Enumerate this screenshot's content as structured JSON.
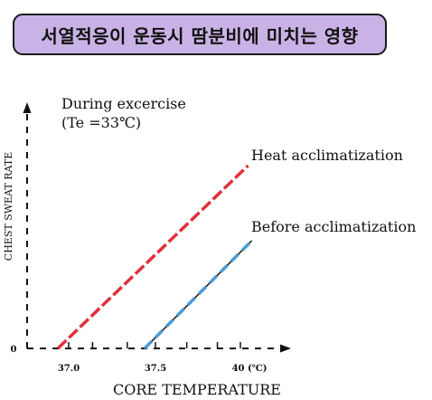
{
  "header": {
    "title": "서열적응이 운동시 땀분비에 미치는 영향"
  },
  "chart_data": {
    "type": "line",
    "condition": "During excercise",
    "condition_detail": "(Te =33℃)",
    "xlabel": "CORE TEMPERATURE",
    "ylabel": "CHEST SWEAT RATE",
    "y_origin_label": "0",
    "x_ticks": [
      {
        "value": 37.0,
        "label": "37.0"
      },
      {
        "value": 37.5,
        "label": "37.5"
      },
      {
        "value": 40.0,
        "label": "40 (℃)"
      }
    ],
    "ylim": [
      0,
      10
    ],
    "series": [
      {
        "name": "Heat acclimatization",
        "color": "#e0303a",
        "x": [
          37.0,
          40.2
        ],
        "y": [
          0,
          7.8
        ]
      },
      {
        "name": "Before acclimatization",
        "color": "#4a9ad4",
        "x": [
          37.5,
          40.3
        ],
        "y": [
          0,
          4.6
        ]
      }
    ]
  }
}
